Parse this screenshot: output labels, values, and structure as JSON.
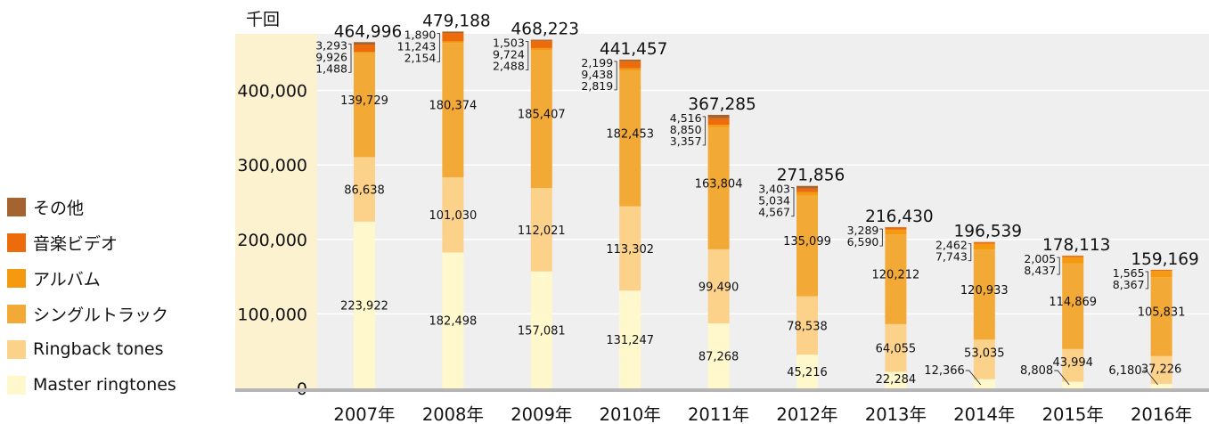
{
  "chart_data": {
    "type": "bar",
    "stacked": true,
    "title": "",
    "unit_label": "千回",
    "categories": [
      "2007年",
      "2008年",
      "2009年",
      "2010年",
      "2011年",
      "2012年",
      "2013年",
      "2014年",
      "2015年",
      "2016年"
    ],
    "ylim": [
      0,
      500000
    ],
    "yticks": [
      0,
      100000,
      200000,
      300000,
      400000
    ],
    "ytick_labels": [
      "0",
      "100,000",
      "200,000",
      "300,000",
      "400,000"
    ],
    "grid": true,
    "legend_position": "left",
    "series": [
      {
        "name": "Master ringtones",
        "color": "#fff8cc",
        "values": [
          223922,
          182498,
          157081,
          131247,
          87268,
          45216,
          22284,
          12366,
          8808,
          6180
        ],
        "labels": [
          "223,922",
          "182,498",
          "157,081",
          "131,247",
          "87,268",
          "45,216",
          "22,284",
          "12,366",
          "8,808",
          "6,180"
        ]
      },
      {
        "name": "Ringback tones",
        "color": "#fcd18a",
        "values": [
          86638,
          101030,
          112021,
          113302,
          99490,
          78538,
          64055,
          53035,
          43994,
          37226
        ],
        "labels": [
          "86,638",
          "101,030",
          "112,021",
          "113,302",
          "99,490",
          "78,538",
          "64,055",
          "53,035",
          "43,994",
          "37,226"
        ]
      },
      {
        "name": "シングルトラック",
        "color": "#f3a935",
        "values": [
          139729,
          180374,
          185407,
          182453,
          163804,
          135099,
          120212,
          120933,
          114869,
          105831
        ],
        "labels": [
          "139,729",
          "180,374",
          "185,407",
          "182,453",
          "163,804",
          "135,099",
          "120,212",
          "120,933",
          "114,869",
          "105,831"
        ]
      },
      {
        "name": "アルバム",
        "color": "#f59a10",
        "values": [
          1488,
          2154,
          2488,
          2819,
          3357,
          4567,
          6590,
          7743,
          8437,
          8367
        ],
        "labels": [
          "1,488",
          "2,154",
          "2,488",
          "2,819",
          "3,357",
          "4,567",
          "6,590",
          "7,743",
          "8,437",
          "8,367"
        ]
      },
      {
        "name": "音楽ビデオ",
        "color": "#ec6b0a",
        "values": [
          9926,
          11243,
          9724,
          9438,
          8850,
          5034,
          3289,
          2462,
          2005,
          1565
        ],
        "labels": [
          "9,926",
          "11,243",
          "9,724",
          "9,438",
          "8,850",
          "5,034",
          "3,289",
          "2,462",
          "2,005",
          "1,565"
        ]
      },
      {
        "name": "その他",
        "color": "#a4632f",
        "values": [
          3293,
          1890,
          1503,
          2199,
          4516,
          3403,
          0,
          0,
          0,
          0
        ],
        "labels": [
          "3,293",
          "1,890",
          "1,503",
          "2,199",
          "4,516",
          "3,403",
          "",
          "",
          "",
          ""
        ]
      }
    ],
    "totals": [
      464996,
      479188,
      468223,
      441457,
      367285,
      271856,
      216430,
      196539,
      178113,
      159169
    ],
    "total_labels": [
      "464,996",
      "479,188",
      "468,223",
      "441,457",
      "367,285",
      "271,856",
      "216,430",
      "196,539",
      "178,113",
      "159,169"
    ]
  }
}
